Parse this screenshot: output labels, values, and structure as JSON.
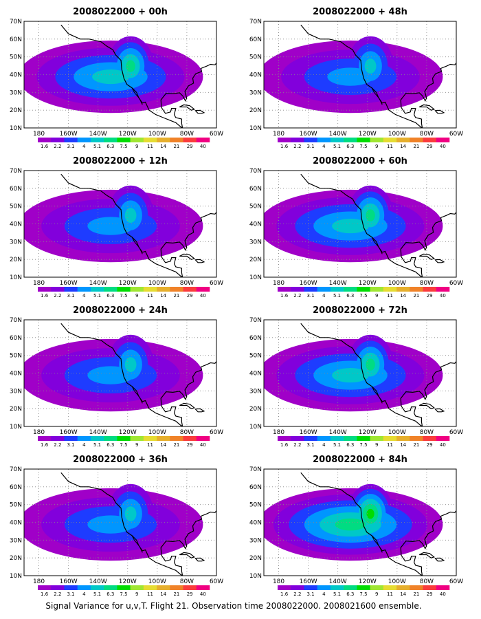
{
  "caption": "Signal Variance for u,v,T. Flight 21. Observation time 2008022000. 2008021600 ensemble.",
  "chart_data": {
    "type": "heatmap",
    "grid_lines": true,
    "colorbar": {
      "labels": [
        "1.6",
        "2.2",
        "3.1",
        "4",
        "5.1",
        "6.3",
        "7.5",
        "9",
        "11",
        "14",
        "21",
        "29",
        "40"
      ],
      "colors": [
        "#a000c8",
        "#8200dc",
        "#1e3cff",
        "#0096ff",
        "#00c8c8",
        "#00dc82",
        "#00dc00",
        "#a0e632",
        "#e6dc32",
        "#e6af2d",
        "#f08228",
        "#fa3c3c",
        "#f00082"
      ]
    },
    "panels": [
      {
        "title": "2008022000 + 00h",
        "x_ticks": [
          "180",
          "160W",
          "140W",
          "120W",
          "100W",
          "80W",
          "60W"
        ],
        "y_ticks": [
          "70N",
          "60N",
          "50N",
          "40N",
          "30N",
          "20N",
          "10N"
        ],
        "xlim": [
          -190,
          -60
        ],
        "ylim": [
          10,
          70
        ],
        "max_level": 5
      },
      {
        "title": "2008022000 + 12h",
        "x_ticks": [
          "180",
          "160W",
          "140W",
          "120W",
          "100W",
          "80W",
          "60W"
        ],
        "y_ticks": [
          "70N",
          "60N",
          "50N",
          "40N",
          "30N",
          "20N",
          "10N"
        ],
        "xlim": [
          -190,
          -60
        ],
        "ylim": [
          10,
          70
        ],
        "max_level": 4
      },
      {
        "title": "2008022000 + 24h",
        "x_ticks": [
          "180",
          "160W",
          "140W",
          "120W",
          "100W",
          "80W",
          "60W"
        ],
        "y_ticks": [
          "70N",
          "60N",
          "50N",
          "40N",
          "30N",
          "20N",
          "10N"
        ],
        "xlim": [
          -190,
          -60
        ],
        "ylim": [
          10,
          70
        ],
        "max_level": 4
      },
      {
        "title": "2008022000 + 36h",
        "x_ticks": [
          "180",
          "160W",
          "140W",
          "120W",
          "100W",
          "80W",
          "60W"
        ],
        "y_ticks": [
          "70N",
          "60N",
          "50N",
          "40N",
          "30N",
          "20N",
          "10N"
        ],
        "xlim": [
          -190,
          -60
        ],
        "ylim": [
          10,
          70
        ],
        "max_level": 4
      },
      {
        "title": "2008022000 + 48h",
        "x_ticks": [
          "180",
          "160W",
          "140W",
          "120W",
          "100W",
          "80W",
          "60W"
        ],
        "y_ticks": [
          "70N",
          "60N",
          "50N",
          "40N",
          "30N",
          "20N",
          "10N"
        ],
        "xlim": [
          -190,
          -60
        ],
        "ylim": [
          10,
          70
        ],
        "max_level": 4
      },
      {
        "title": "2008022000 + 60h",
        "x_ticks": [
          "180",
          "160W",
          "140W",
          "120W",
          "100W",
          "80W",
          "60W"
        ],
        "y_ticks": [
          "70N",
          "60N",
          "50N",
          "40N",
          "30N",
          "20N",
          "10N"
        ],
        "xlim": [
          -190,
          -60
        ],
        "ylim": [
          10,
          70
        ],
        "max_level": 5
      },
      {
        "title": "2008022000 + 72h",
        "x_ticks": [
          "180",
          "160W",
          "140W",
          "120W",
          "100W",
          "80W",
          "60W"
        ],
        "y_ticks": [
          "70N",
          "60N",
          "50N",
          "40N",
          "30N",
          "20N",
          "10N"
        ],
        "xlim": [
          -190,
          -60
        ],
        "ylim": [
          10,
          70
        ],
        "max_level": 5
      },
      {
        "title": "2008022000 + 84h",
        "x_ticks": [
          "180",
          "160W",
          "140W",
          "120W",
          "100W",
          "80W",
          "60W"
        ],
        "y_ticks": [
          "70N",
          "60N",
          "50N",
          "40N",
          "30N",
          "20N",
          "10N"
        ],
        "xlim": [
          -190,
          -60
        ],
        "ylim": [
          10,
          70
        ],
        "max_level": 6
      }
    ]
  }
}
